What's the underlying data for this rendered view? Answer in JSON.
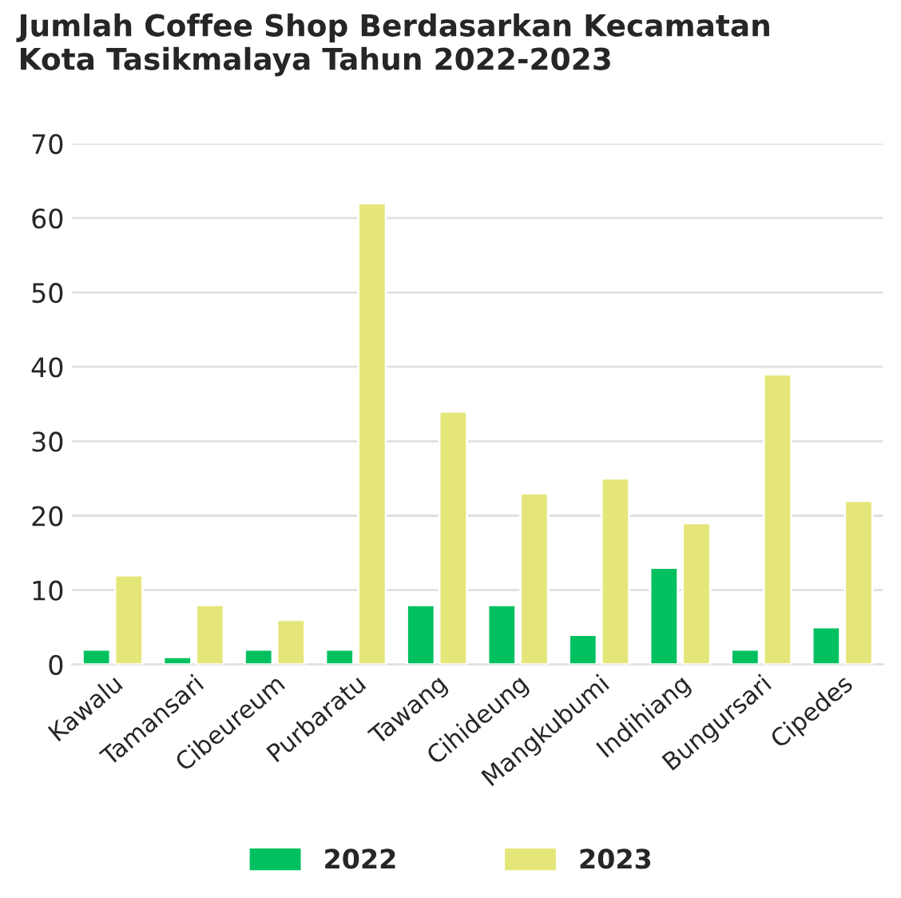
{
  "chart_data": {
    "type": "bar",
    "title": "Jumlah Coffee Shop Berdasarkan Kecamatan\nKota Tasikmalaya Tahun 2022-2023",
    "categories": [
      "Kawalu",
      "Tamansari",
      "Cibeureum",
      "Purbaratu",
      "Tawang",
      "Cihideung",
      "Mangkubumi",
      "Indihiang",
      "Bungursari",
      "Cipedes"
    ],
    "series": [
      {
        "name": "2022",
        "color": "#00c060",
        "values": [
          2,
          1,
          2,
          2,
          8,
          8,
          4,
          13,
          2,
          5
        ]
      },
      {
        "name": "2023",
        "color": "#e5e67a",
        "values": [
          12,
          8,
          6,
          62,
          34,
          23,
          25,
          19,
          39,
          22
        ]
      }
    ],
    "ylim": [
      0,
      70
    ],
    "yticks": [
      0,
      10,
      20,
      30,
      40,
      50,
      60,
      70
    ],
    "grid": "y",
    "legend": "bottom"
  }
}
